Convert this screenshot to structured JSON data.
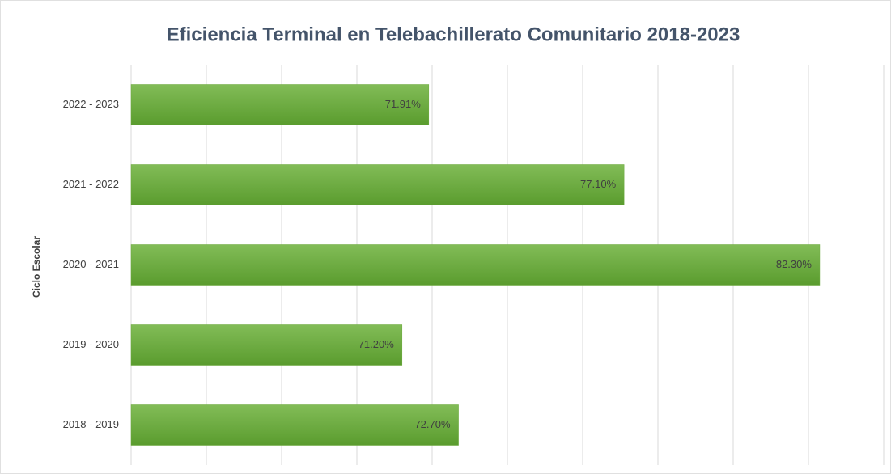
{
  "chart_data": {
    "type": "bar",
    "orientation": "horizontal",
    "title": "Eficiencia Terminal en Telebachillerato Comunitario 2018-2023",
    "y_label": "Ciclo Escolar",
    "categories": [
      "2022 - 2023",
      "2021 - 2022",
      "2020 - 2021",
      "2019 - 2020",
      "2018 - 2019"
    ],
    "values": [
      71.91,
      77.1,
      82.3,
      71.2,
      72.7
    ],
    "value_labels": [
      "71.91%",
      "77.10%",
      "82.30%",
      "71.20%",
      "72.70%"
    ],
    "color": "#6aa83b",
    "xlim": [
      64,
      84
    ],
    "xticks": [
      64,
      66,
      68,
      70,
      72,
      74,
      76,
      78,
      80,
      82,
      84
    ],
    "grid": true
  }
}
